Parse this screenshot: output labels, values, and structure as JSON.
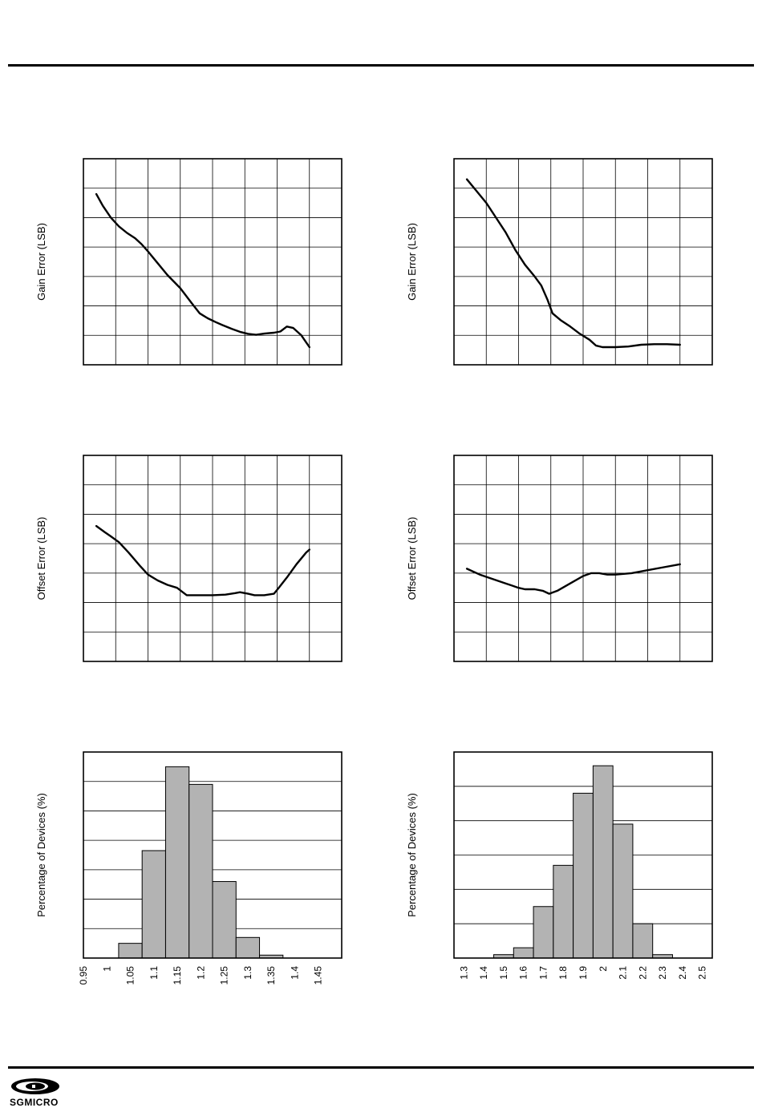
{
  "chart_data": [
    {
      "id": "gain-vs-a",
      "type": "line",
      "title": "",
      "xlabel": "",
      "ylabel": "Gain Error (LSB)",
      "grid": true,
      "x_divisions": 8,
      "y_divisions": 7,
      "series": [
        {
          "x": [
            0.4,
            0.6,
            0.85,
            1.1,
            1.35,
            1.6,
            1.8,
            2.0,
            2.3,
            2.6,
            3.0,
            3.35,
            3.6,
            3.85,
            4.1,
            4.3,
            4.6,
            4.85,
            5.1,
            5.35,
            5.6,
            5.9,
            6.1,
            6.3,
            6.5,
            6.75,
            7.0
          ],
          "y": [
            5.8,
            5.4,
            5.0,
            4.7,
            4.48,
            4.3,
            4.1,
            3.85,
            3.45,
            3.05,
            2.6,
            2.1,
            1.75,
            1.58,
            1.45,
            1.35,
            1.22,
            1.12,
            1.05,
            1.02,
            1.06,
            1.09,
            1.13,
            1.3,
            1.25,
            1.0,
            0.6
          ]
        }
      ]
    },
    {
      "id": "gain-vs-b",
      "type": "line",
      "title": "",
      "xlabel": "",
      "ylabel": "Gain Error (LSB)",
      "grid": true,
      "x_divisions": 8,
      "y_divisions": 7,
      "series": [
        {
          "x": [
            0.4,
            0.7,
            1.0,
            1.3,
            1.6,
            1.9,
            2.2,
            2.5,
            2.7,
            2.9,
            3.05,
            3.3,
            3.6,
            3.9,
            4.2,
            4.4,
            4.6,
            5.0,
            5.4,
            5.8,
            6.2,
            6.6,
            7.0
          ],
          "y": [
            6.3,
            5.9,
            5.5,
            5.0,
            4.5,
            3.9,
            3.4,
            3.0,
            2.7,
            2.2,
            1.75,
            1.52,
            1.3,
            1.05,
            0.85,
            0.65,
            0.6,
            0.6,
            0.62,
            0.68,
            0.7,
            0.7,
            0.68
          ]
        }
      ]
    },
    {
      "id": "offset-vs-a",
      "type": "line",
      "title": "",
      "xlabel": "",
      "ylabel": "Offset Error (LSB)",
      "grid": true,
      "x_divisions": 8,
      "y_divisions": 7,
      "series": [
        {
          "x": [
            0.4,
            0.65,
            0.85,
            1.1,
            1.4,
            1.75,
            2.0,
            2.3,
            2.6,
            2.9,
            3.2,
            3.6,
            4.0,
            4.4,
            4.7,
            4.85,
            5.1,
            5.3,
            5.6,
            5.9,
            6.05,
            6.3,
            6.6,
            6.9,
            7.0
          ],
          "y": [
            4.6,
            4.4,
            4.25,
            4.05,
            3.7,
            3.25,
            2.95,
            2.75,
            2.6,
            2.5,
            2.25,
            2.25,
            2.25,
            2.27,
            2.32,
            2.35,
            2.3,
            2.25,
            2.25,
            2.3,
            2.5,
            2.85,
            3.3,
            3.7,
            3.8
          ]
        }
      ]
    },
    {
      "id": "offset-vs-b",
      "type": "line",
      "title": "",
      "xlabel": "",
      "ylabel": "Offset Error (LSB)",
      "grid": true,
      "x_divisions": 8,
      "y_divisions": 7,
      "series": [
        {
          "x": [
            0.4,
            0.8,
            1.2,
            1.6,
            2.0,
            2.2,
            2.5,
            2.75,
            2.95,
            3.2,
            3.6,
            4.0,
            4.25,
            4.5,
            4.75,
            5.0,
            5.5,
            6.0,
            6.5,
            7.0
          ],
          "y": [
            3.15,
            2.95,
            2.8,
            2.65,
            2.5,
            2.45,
            2.45,
            2.4,
            2.3,
            2.4,
            2.65,
            2.9,
            3.0,
            3.0,
            2.95,
            2.95,
            3.0,
            3.1,
            3.2,
            3.3
          ]
        }
      ]
    },
    {
      "id": "histogram-a",
      "type": "bar",
      "title": "",
      "xlabel": "",
      "ylabel": "Percentage of Devices (%)",
      "grid": true,
      "y_divisions": 7,
      "x_ticks": [
        "0.95",
        "1",
        "1.05",
        "1.1",
        "1.15",
        "1.2",
        "1.25",
        "1.3",
        "1.35",
        "1.4",
        "1.45"
      ],
      "bars": [
        {
          "from": 1.025,
          "to": 1.075,
          "value": 0.5
        },
        {
          "from": 1.075,
          "to": 1.125,
          "value": 3.65
        },
        {
          "from": 1.125,
          "to": 1.175,
          "value": 6.5
        },
        {
          "from": 1.175,
          "to": 1.225,
          "value": 5.9
        },
        {
          "from": 1.225,
          "to": 1.275,
          "value": 2.6
        },
        {
          "from": 1.275,
          "to": 1.325,
          "value": 0.7
        },
        {
          "from": 1.325,
          "to": 1.375,
          "value": 0.1
        }
      ],
      "xlim": [
        0.95,
        1.5
      ],
      "ylim": [
        0,
        7
      ]
    },
    {
      "id": "histogram-b",
      "type": "bar",
      "title": "",
      "xlabel": "",
      "ylabel": "Percentage of Devices (%)",
      "grid": true,
      "y_divisions": 6,
      "x_ticks": [
        "1.3",
        "1.4",
        "1.5",
        "1.6",
        "1.7",
        "1.8",
        "1.9",
        "2",
        "2.1",
        "2.2",
        "2.3",
        "2.4",
        "2.5"
      ],
      "bars": [
        {
          "from": 1.45,
          "to": 1.55,
          "value": 0.1
        },
        {
          "from": 1.55,
          "to": 1.65,
          "value": 0.3
        },
        {
          "from": 1.65,
          "to": 1.75,
          "value": 1.5
        },
        {
          "from": 1.75,
          "to": 1.85,
          "value": 2.7
        },
        {
          "from": 1.85,
          "to": 1.95,
          "value": 4.8
        },
        {
          "from": 1.95,
          "to": 2.05,
          "value": 5.6
        },
        {
          "from": 2.05,
          "to": 2.15,
          "value": 3.9
        },
        {
          "from": 2.15,
          "to": 2.25,
          "value": 1.0
        },
        {
          "from": 2.25,
          "to": 2.35,
          "value": 0.1
        }
      ],
      "xlim": [
        1.25,
        2.55
      ],
      "ylim": [
        0,
        6
      ]
    }
  ],
  "footer": {
    "logo_text": "SGMICRO"
  }
}
